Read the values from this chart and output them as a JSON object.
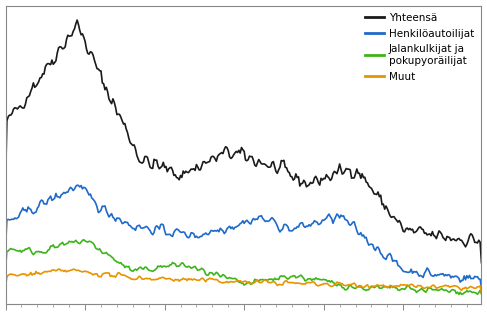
{
  "legend": [
    "Yhteensä",
    "Henkilöautoilijat",
    "Jalankulkijat ja\npokupyoräilijat",
    "Muut"
  ],
  "colors": [
    "#1a1a1a",
    "#1f6ac9",
    "#3db51a",
    "#e89400"
  ],
  "linewidths": [
    1.2,
    1.2,
    1.2,
    1.2
  ],
  "ylim": [
    0,
    1000
  ],
  "grid_color": "#cccccc",
  "bg_color": "#ffffff",
  "n_months": 360,
  "legend_fontsize": 7.5
}
